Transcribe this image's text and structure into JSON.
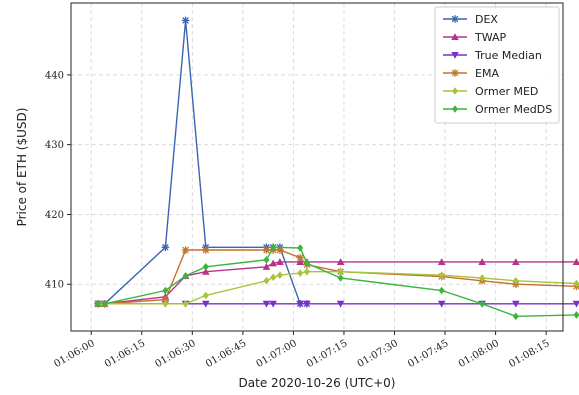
{
  "chart_data": {
    "type": "line",
    "xlabel": "Date 2020-10-26 (UTC+0)",
    "ylabel": "Price of ETH ($USD)",
    "x_ticks": [
      "01:06:00",
      "01:06:15",
      "01:06:30",
      "01:06:45",
      "01:07:00",
      "01:07:15",
      "01:07:30",
      "01:07:45",
      "01:08:00",
      "01:08:15"
    ],
    "y_ticks": [
      410,
      420,
      430,
      440
    ],
    "xlim": [
      "01:05:54",
      "01:08:20"
    ],
    "ylim": [
      403.3,
      450.3
    ],
    "grid": true,
    "legend_position": "top-right",
    "series": [
      {
        "name": "DEX",
        "color": "#3a64b0",
        "marker": "asterisk",
        "points": [
          [
            "01:06:02",
            407.2
          ],
          [
            "01:06:04",
            407.2
          ],
          [
            "01:06:22",
            415.3
          ],
          [
            "01:06:28",
            447.8
          ],
          [
            "01:06:34",
            415.3
          ],
          [
            "01:06:52",
            415.3
          ],
          [
            "01:06:54",
            415.3
          ],
          [
            "01:06:56",
            415.3
          ],
          [
            "01:07:02",
            407.2
          ],
          [
            "01:07:04",
            407.2
          ]
        ]
      },
      {
        "name": "TWAP",
        "color": "#b5338a",
        "marker": "triangle-up",
        "points": [
          [
            "01:06:02",
            407.2
          ],
          [
            "01:06:04",
            407.2
          ],
          [
            "01:06:22",
            408.2
          ],
          [
            "01:06:28",
            411.2
          ],
          [
            "01:06:34",
            411.8
          ],
          [
            "01:06:52",
            412.5
          ],
          [
            "01:06:54",
            413.0
          ],
          [
            "01:06:56",
            413.2
          ],
          [
            "01:07:02",
            413.2
          ],
          [
            "01:07:04",
            413.2
          ],
          [
            "01:07:14",
            413.2
          ],
          [
            "01:07:44",
            413.2
          ],
          [
            "01:07:56",
            413.2
          ],
          [
            "01:08:06",
            413.2
          ],
          [
            "01:08:24",
            413.2
          ]
        ]
      },
      {
        "name": "True Median",
        "color": "#7b2fc9",
        "marker": "triangle-down",
        "points": [
          [
            "01:06:02",
            407.2
          ],
          [
            "01:06:04",
            407.2
          ],
          [
            "01:06:22",
            407.2
          ],
          [
            "01:06:28",
            407.2
          ],
          [
            "01:06:34",
            407.2
          ],
          [
            "01:06:52",
            407.2
          ],
          [
            "01:06:54",
            407.2
          ],
          [
            "01:07:02",
            407.2
          ],
          [
            "01:07:04",
            407.2
          ],
          [
            "01:07:14",
            407.2
          ],
          [
            "01:07:44",
            407.2
          ],
          [
            "01:07:56",
            407.2
          ],
          [
            "01:08:06",
            407.2
          ],
          [
            "01:08:24",
            407.2
          ]
        ]
      },
      {
        "name": "EMA",
        "color": "#c0742e",
        "marker": "asterisk",
        "points": [
          [
            "01:06:02",
            407.2
          ],
          [
            "01:06:04",
            407.2
          ],
          [
            "01:06:22",
            407.8
          ],
          [
            "01:06:28",
            414.9
          ],
          [
            "01:06:34",
            414.9
          ],
          [
            "01:06:52",
            414.9
          ],
          [
            "01:06:54",
            414.9
          ],
          [
            "01:06:56",
            414.9
          ],
          [
            "01:07:02",
            413.8
          ],
          [
            "01:07:04",
            412.8
          ],
          [
            "01:07:14",
            411.8
          ],
          [
            "01:07:44",
            411.1
          ],
          [
            "01:07:56",
            410.5
          ],
          [
            "01:08:06",
            410.0
          ],
          [
            "01:08:24",
            409.7
          ]
        ]
      },
      {
        "name": "Ormer MED",
        "color": "#a8c43c",
        "marker": "diamond",
        "points": [
          [
            "01:06:02",
            407.2
          ],
          [
            "01:06:04",
            407.2
          ],
          [
            "01:06:22",
            407.2
          ],
          [
            "01:06:28",
            407.2
          ],
          [
            "01:06:34",
            408.4
          ],
          [
            "01:06:52",
            410.5
          ],
          [
            "01:06:54",
            411.0
          ],
          [
            "01:06:56",
            411.3
          ],
          [
            "01:07:02",
            411.6
          ],
          [
            "01:07:04",
            411.8
          ],
          [
            "01:07:14",
            411.8
          ],
          [
            "01:07:44",
            411.3
          ],
          [
            "01:07:56",
            410.9
          ],
          [
            "01:08:06",
            410.5
          ],
          [
            "01:08:24",
            410.1
          ]
        ]
      },
      {
        "name": "Ormer MedDS",
        "color": "#3cb53c",
        "marker": "diamond",
        "points": [
          [
            "01:06:02",
            407.2
          ],
          [
            "01:06:04",
            407.2
          ],
          [
            "01:06:22",
            409.1
          ],
          [
            "01:06:28",
            411.2
          ],
          [
            "01:06:34",
            412.5
          ],
          [
            "01:06:52",
            413.5
          ],
          [
            "01:06:54",
            415.3
          ],
          [
            "01:07:02",
            415.2
          ],
          [
            "01:07:04",
            413.0
          ],
          [
            "01:07:14",
            410.9
          ],
          [
            "01:07:44",
            409.1
          ],
          [
            "01:07:56",
            407.2
          ],
          [
            "01:08:06",
            405.4
          ],
          [
            "01:08:24",
            405.6
          ]
        ]
      }
    ]
  }
}
